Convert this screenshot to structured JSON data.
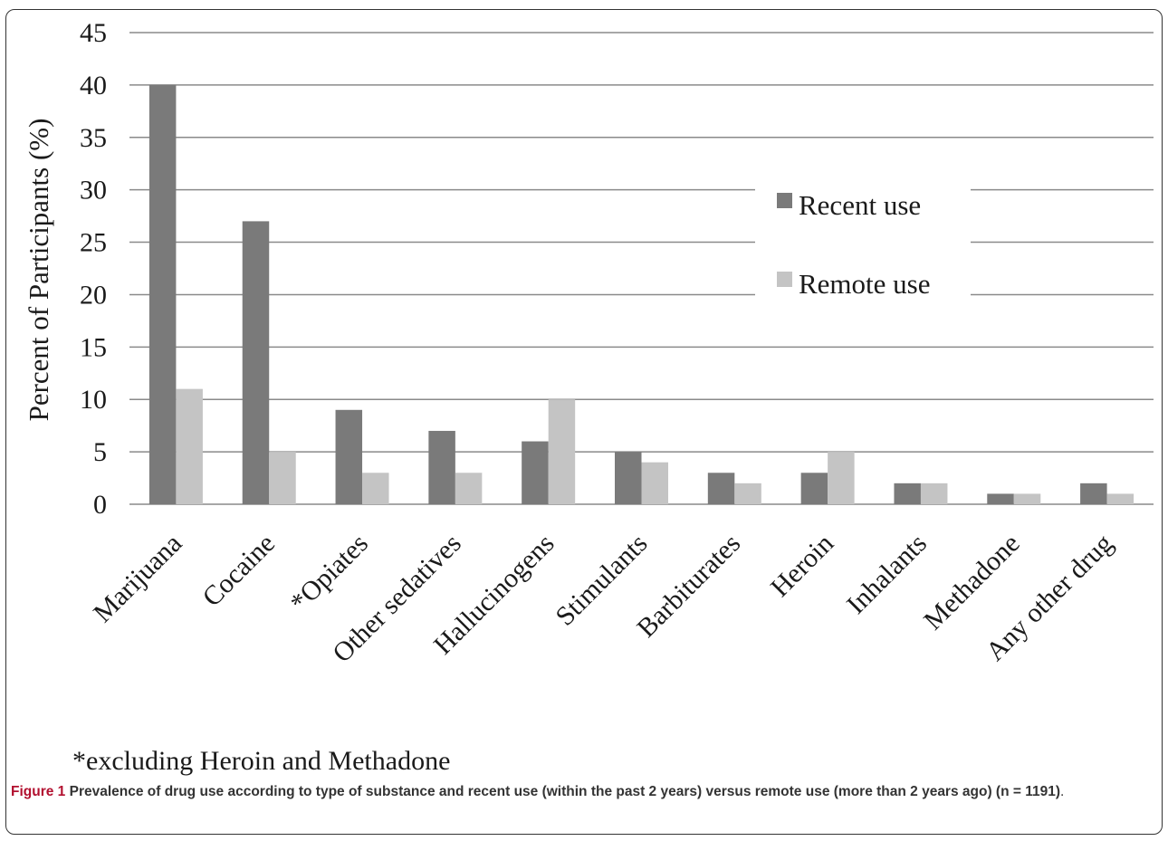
{
  "chart_data": {
    "type": "bar",
    "ylabel": "Percent of Participants (%)",
    "xlabel": "",
    "ylim": [
      0,
      45
    ],
    "yticks": [
      0,
      5,
      10,
      15,
      20,
      25,
      30,
      35,
      40,
      45
    ],
    "grid": true,
    "legend_position": "upper-right",
    "categories": [
      "Marijuana",
      "Cocaine",
      "*Opiates",
      "Other sedatives",
      "Hallucinogens",
      "Stimulants",
      "Barbiturates",
      "Heroin",
      "Inhalants",
      "Methadone",
      "Any other drug"
    ],
    "series": [
      {
        "name": "Recent use",
        "color": "#7a7a7a",
        "values": [
          40,
          27,
          9,
          7,
          6,
          5,
          3,
          3,
          2,
          1,
          2
        ]
      },
      {
        "name": "Remote use",
        "color": "#c4c4c4",
        "values": [
          11,
          5,
          3,
          3,
          10,
          4,
          2,
          5,
          2,
          1,
          1
        ]
      }
    ],
    "footnote": "*excluding Heroin and Methadone"
  },
  "caption": {
    "figure_number": "Figure 1",
    "text": "Prevalence of drug use according to type of substance and recent use (within the past 2 years) versus remote use (more than 2 years ago) (n = 1191)",
    "trailing": "."
  }
}
